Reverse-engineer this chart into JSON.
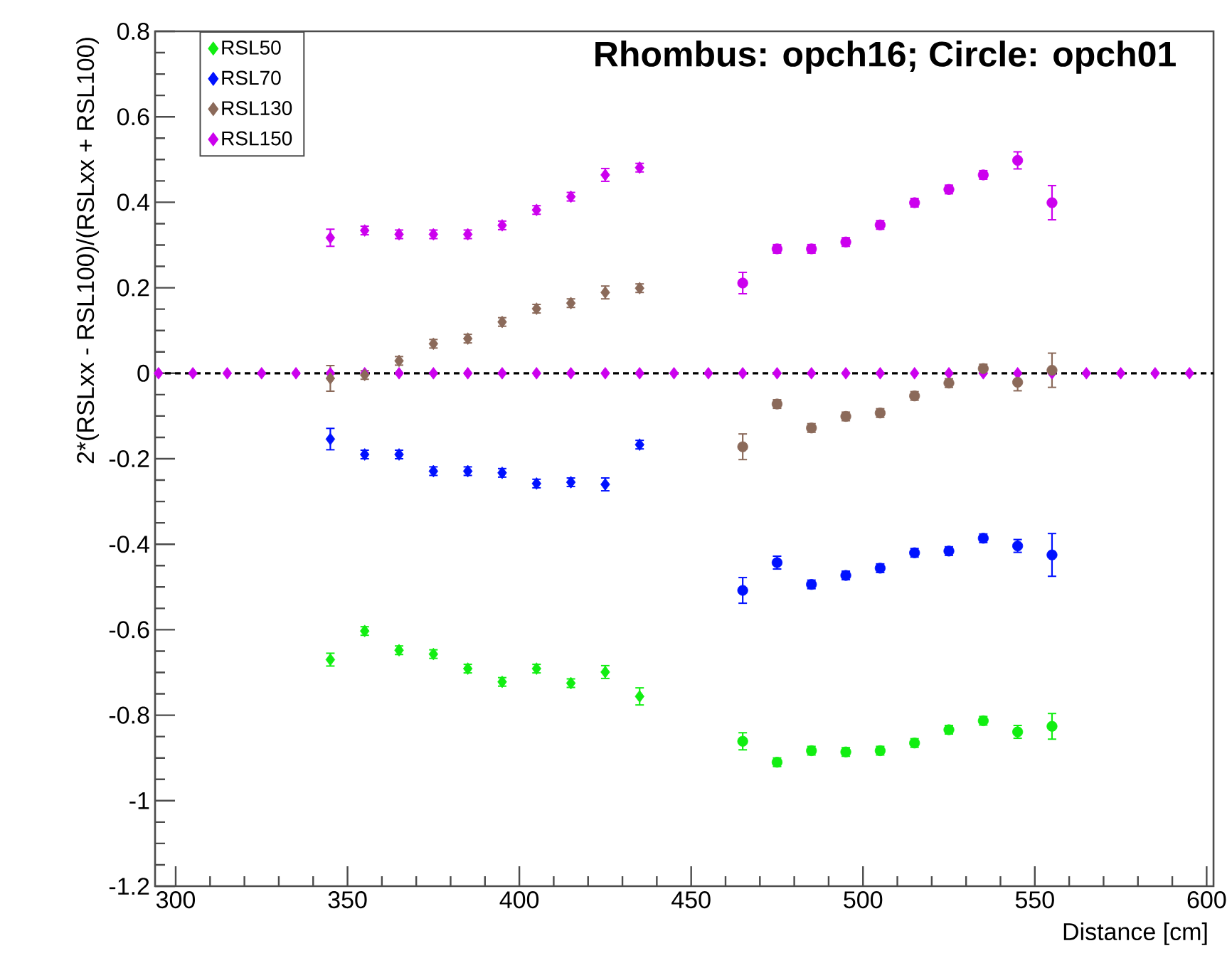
{
  "chart_data": {
    "type": "scatter",
    "title": "Rhombus: opch16;   Circle: opch01",
    "xlabel": "Distance [cm]",
    "ylabel": "2*(RSLxx - RSL100)/(RSLxx + RSL100)",
    "xlim": [
      294,
      602
    ],
    "ylim": [
      -1.2,
      0.8
    ],
    "xticks": [
      300,
      350,
      400,
      450,
      500,
      550,
      600
    ],
    "yticks": [
      -1.2,
      -1,
      -0.8,
      -0.6,
      -0.4,
      -0.2,
      0,
      0.2,
      0.4,
      0.6,
      0.8
    ],
    "grid": false,
    "legend": "top left",
    "ref_lines": [
      {
        "axis": "y",
        "value": 0,
        "color": "#000000",
        "line_style": "dashed"
      }
    ],
    "series": [
      {
        "color": "#cc00ee",
        "marker": "diamond",
        "x": [
          295,
          305,
          315,
          325,
          335,
          345,
          355,
          365,
          375,
          385,
          395,
          405,
          415,
          425,
          435,
          445,
          455,
          465,
          475,
          485,
          495,
          505,
          515,
          525,
          535,
          545,
          555,
          565,
          575,
          585,
          595
        ],
        "values": [
          0,
          0,
          0,
          0,
          0,
          0,
          0,
          0,
          0,
          0,
          0,
          0,
          0,
          0,
          0,
          0,
          0,
          0,
          0,
          0,
          0,
          0,
          0,
          0,
          0,
          0,
          0,
          0,
          0,
          0,
          0
        ]
      },
      {
        "name": "RSL50",
        "color": "#11ee11",
        "marker": "diamond",
        "x": [
          345,
          355,
          365,
          375,
          385,
          395,
          405,
          415,
          425,
          435
        ],
        "values": [
          -0.67,
          -0.603,
          -0.648,
          -0.657,
          -0.691,
          -0.722,
          -0.691,
          -0.725,
          -0.699,
          -0.756
        ],
        "errors": [
          0.015,
          0.01,
          0.01,
          0.01,
          0.01,
          0.01,
          0.01,
          0.01,
          0.015,
          0.02
        ]
      },
      {
        "name": "RSL70",
        "color": "#0011ff",
        "marker": "diamond",
        "x": [
          345,
          355,
          365,
          375,
          385,
          395,
          405,
          415,
          425,
          435
        ],
        "values": [
          -0.154,
          -0.19,
          -0.19,
          -0.229,
          -0.229,
          -0.233,
          -0.258,
          -0.255,
          -0.26,
          -0.167
        ],
        "errors": [
          0.025,
          0.01,
          0.01,
          0.01,
          0.01,
          0.01,
          0.01,
          0.01,
          0.015,
          0.01
        ]
      },
      {
        "name": "RSL130",
        "color": "#8b6a5a",
        "marker": "diamond",
        "x": [
          345,
          355,
          365,
          375,
          385,
          395,
          405,
          415,
          425,
          435
        ],
        "values": [
          -0.012,
          -0.004,
          0.029,
          0.069,
          0.081,
          0.12,
          0.151,
          0.164,
          0.189,
          0.199
        ],
        "errors": [
          0.03,
          0.01,
          0.01,
          0.01,
          0.01,
          0.01,
          0.01,
          0.01,
          0.015,
          0.01
        ]
      },
      {
        "name": "RSL150",
        "color": "#cc00ee",
        "marker": "diamond",
        "x": [
          345,
          355,
          365,
          375,
          385,
          395,
          405,
          415,
          425,
          435
        ],
        "values": [
          0.317,
          0.334,
          0.325,
          0.325,
          0.325,
          0.346,
          0.382,
          0.413,
          0.464,
          0.481
        ],
        "errors": [
          0.02,
          0.01,
          0.01,
          0.01,
          0.01,
          0.01,
          0.01,
          0.01,
          0.015,
          0.01
        ]
      },
      {
        "color": "#11ee11",
        "marker": "circle",
        "x": [
          465,
          475,
          485,
          495,
          505,
          515,
          525,
          535,
          545,
          555
        ],
        "values": [
          -0.861,
          -0.91,
          -0.883,
          -0.886,
          -0.883,
          -0.865,
          -0.834,
          -0.813,
          -0.839,
          -0.826
        ],
        "errors": [
          0.02,
          0.01,
          0.01,
          0.01,
          0.01,
          0.01,
          0.01,
          0.01,
          0.015,
          0.03
        ]
      },
      {
        "color": "#0011ff",
        "marker": "circle",
        "x": [
          465,
          475,
          485,
          495,
          505,
          515,
          525,
          535,
          545,
          555
        ],
        "values": [
          -0.508,
          -0.443,
          -0.494,
          -0.473,
          -0.456,
          -0.42,
          -0.416,
          -0.386,
          -0.404,
          -0.425
        ],
        "errors": [
          0.03,
          0.015,
          0.01,
          0.01,
          0.01,
          0.01,
          0.01,
          0.01,
          0.015,
          0.05
        ]
      },
      {
        "color": "#8b6a5a",
        "marker": "circle",
        "x": [
          465,
          475,
          485,
          495,
          505,
          515,
          525,
          535,
          545,
          555
        ],
        "values": [
          -0.172,
          -0.072,
          -0.128,
          -0.101,
          -0.093,
          -0.053,
          -0.023,
          0.011,
          -0.021,
          0.007
        ],
        "errors": [
          0.03,
          0.01,
          0.01,
          0.01,
          0.01,
          0.01,
          0.01,
          0.01,
          0.02,
          0.04
        ]
      },
      {
        "color": "#cc00ee",
        "marker": "circle",
        "x": [
          465,
          475,
          485,
          495,
          505,
          515,
          525,
          535,
          545,
          555
        ],
        "values": [
          0.211,
          0.291,
          0.291,
          0.307,
          0.347,
          0.399,
          0.43,
          0.464,
          0.498,
          0.399
        ],
        "errors": [
          0.025,
          0.01,
          0.01,
          0.01,
          0.01,
          0.01,
          0.01,
          0.01,
          0.02,
          0.04
        ]
      }
    ]
  }
}
